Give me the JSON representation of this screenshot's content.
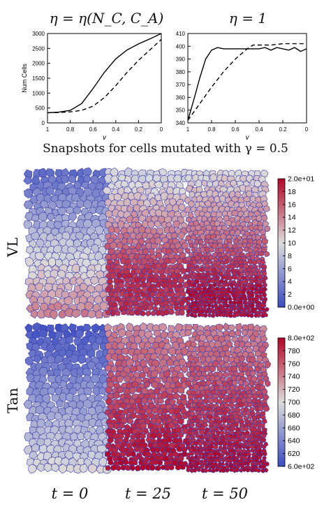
{
  "figure": {
    "caption": "Snapshots for cells mutated with γ = 0.5",
    "row_labels": [
      "VL",
      "Tan"
    ],
    "time_labels": [
      "t = 0",
      "t = 25",
      "t = 50"
    ],
    "colorbars": [
      {
        "ticks": [
          "2.0e+01",
          "18",
          "16",
          "14",
          "12",
          "10",
          "8",
          "6",
          "4",
          "2",
          "0.0e+00"
        ],
        "min": 0,
        "max": 20
      },
      {
        "ticks": [
          "8.0e+02",
          "780",
          "760",
          "740",
          "720",
          "700",
          "680",
          "660",
          "640",
          "620",
          "6.0e+02"
        ],
        "min": 600,
        "max": 800
      }
    ],
    "colors": {
      "low": "#3b4cc0",
      "mid": "#dcdcdc",
      "high": "#b40426",
      "edge": "#3a3aa8"
    }
  },
  "chart_data": [
    {
      "type": "line",
      "title": "η = η(N_C, C_A)",
      "xlabel": "γ",
      "ylabel": "Num Cells",
      "xlim": [
        1,
        0
      ],
      "ylim": [
        0,
        3000
      ],
      "x_reversed": true,
      "xticks": [
        "1",
        "0.8",
        "0.6",
        "0.4",
        "0.2",
        "0"
      ],
      "yticks": [
        "0",
        "500",
        "1000",
        "1500",
        "2000",
        "2500",
        "3000"
      ],
      "series": [
        {
          "style": "solid",
          "x": [
            1,
            0.9,
            0.8,
            0.7,
            0.6,
            0.5,
            0.4,
            0.3,
            0.2,
            0.1,
            0
          ],
          "y": [
            340,
            360,
            420,
            650,
            1150,
            1700,
            2150,
            2450,
            2650,
            2820,
            3000
          ]
        },
        {
          "style": "dashed",
          "x": [
            1,
            0.9,
            0.8,
            0.7,
            0.6,
            0.5,
            0.4,
            0.3,
            0.2,
            0.1,
            0
          ],
          "y": [
            340,
            350,
            370,
            420,
            560,
            850,
            1250,
            1700,
            2100,
            2450,
            2800
          ]
        }
      ]
    },
    {
      "type": "line",
      "title": "η = 1",
      "xlabel": "γ",
      "ylabel": "",
      "xlim": [
        1,
        0
      ],
      "ylim": [
        340,
        410
      ],
      "x_reversed": true,
      "xticks": [
        "1",
        "0.8",
        "0.6",
        "0.4",
        "0.2",
        "0"
      ],
      "yticks": [
        "340",
        "350",
        "360",
        "370",
        "380",
        "390",
        "400",
        "410"
      ],
      "series": [
        {
          "style": "solid",
          "x": [
            1,
            0.95,
            0.9,
            0.85,
            0.8,
            0.75,
            0.7,
            0.6,
            0.5,
            0.4,
            0.35,
            0.3,
            0.25,
            0.2,
            0.15,
            0.1,
            0.05,
            0
          ],
          "y": [
            342,
            358,
            375,
            390,
            397,
            399,
            398,
            398,
            398,
            398,
            399,
            397,
            399,
            398,
            397,
            399,
            396,
            398
          ]
        },
        {
          "style": "dashed",
          "x": [
            1,
            0.9,
            0.8,
            0.7,
            0.6,
            0.5,
            0.45,
            0.4,
            0.3,
            0.2,
            0.1,
            0
          ],
          "y": [
            342,
            355,
            368,
            380,
            390,
            398,
            401,
            401,
            401,
            402,
            402,
            402
          ]
        }
      ]
    }
  ]
}
